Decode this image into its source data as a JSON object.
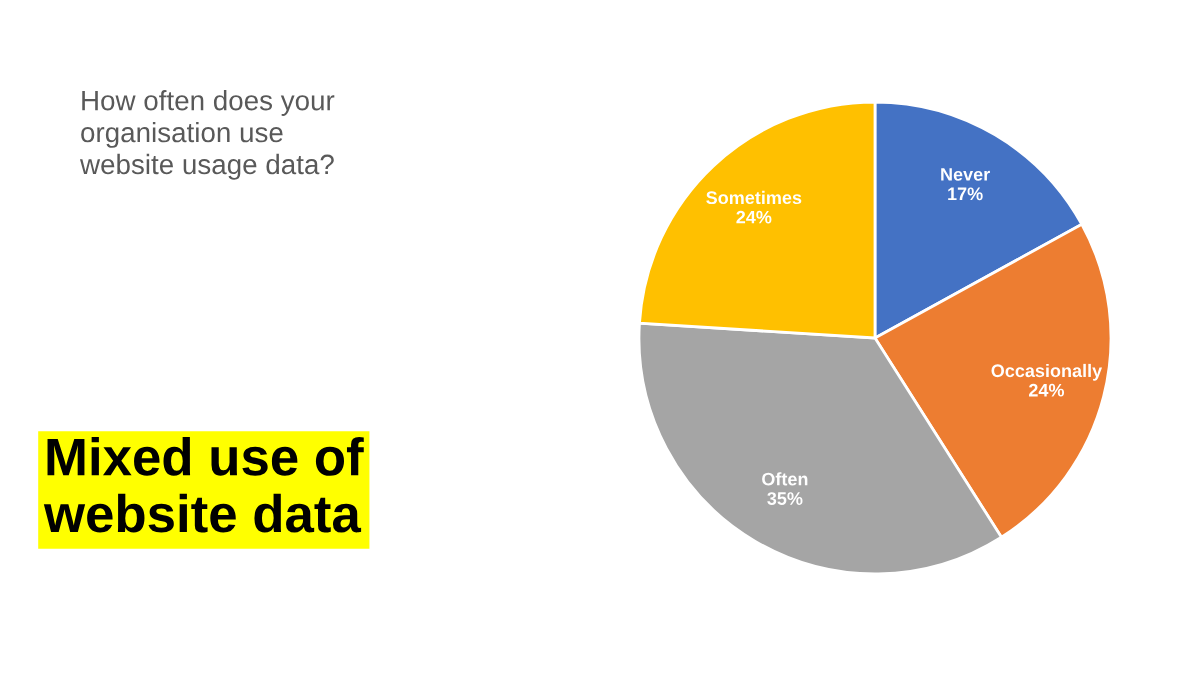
{
  "chart_data": {
    "type": "pie",
    "title": "How often does your\norganisation use\nwebsite usage data?",
    "annotations": [
      "Mixed use of\nwebsite data"
    ],
    "categories": [
      "Never",
      "Occasionally",
      "Often",
      "Sometimes"
    ],
    "values": [
      17,
      24,
      35,
      24
    ],
    "colors": [
      "#4472c4",
      "#ed7d31",
      "#a5a5a5",
      "#ffc000"
    ],
    "value_labels": [
      "17%",
      "24%",
      "35%",
      "24%"
    ],
    "legend": false
  }
}
